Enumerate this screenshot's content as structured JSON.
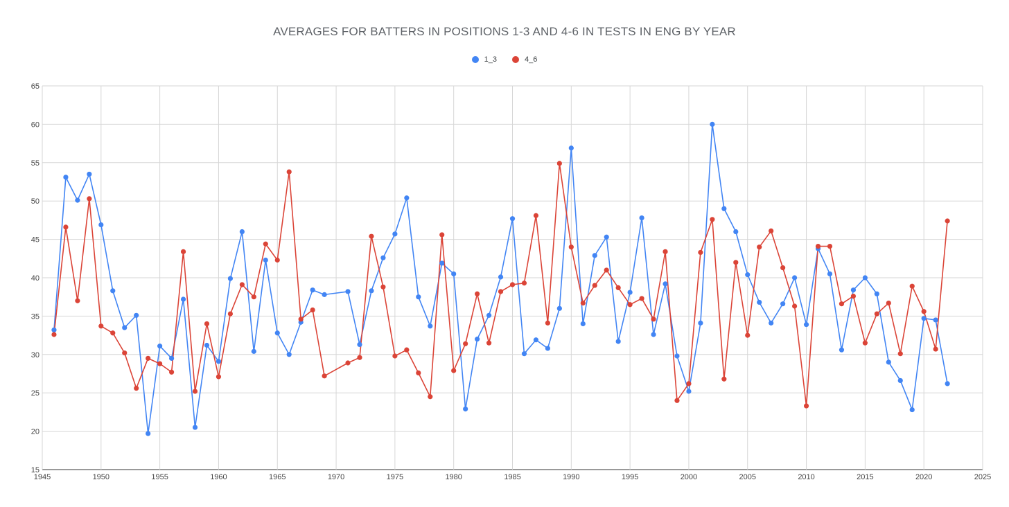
{
  "chart_data": {
    "type": "line",
    "title": "AVERAGES FOR BATTERS IN POSITIONS 1-3 AND 4-6 IN TESTS IN ENG BY YEAR",
    "xlabel": "",
    "ylabel": "",
    "xlim": [
      1945,
      2025
    ],
    "ylim": [
      15,
      65
    ],
    "x_ticks": [
      "1945",
      "1950",
      "1955",
      "1960",
      "1965",
      "1970",
      "1975",
      "1980",
      "1985",
      "1990",
      "1995",
      "2000",
      "2005",
      "2010",
      "2015",
      "2020",
      "2025"
    ],
    "y_ticks": [
      "15",
      "20",
      "25",
      "30",
      "35",
      "40",
      "45",
      "50",
      "55",
      "60",
      "65"
    ],
    "grid": true,
    "legend_position": "top",
    "series": [
      {
        "name": "1_3",
        "color": "#4285f4",
        "points": [
          [
            1946,
            33.2
          ],
          [
            1947,
            53.1
          ],
          [
            1948,
            50.1
          ],
          [
            1949,
            53.5
          ],
          [
            1950,
            46.9
          ],
          [
            1951,
            38.3
          ],
          [
            1952,
            33.5
          ],
          [
            1953,
            35.1
          ],
          [
            1954,
            19.7
          ],
          [
            1955,
            31.1
          ],
          [
            1956,
            29.5
          ],
          [
            1957,
            37.2
          ],
          [
            1958,
            20.5
          ],
          [
            1959,
            31.2
          ],
          [
            1960,
            29.1
          ],
          [
            1961,
            39.9
          ],
          [
            1962,
            46.0
          ],
          [
            1963,
            30.4
          ],
          [
            1964,
            42.3
          ],
          [
            1965,
            32.8
          ],
          [
            1966,
            30.0
          ],
          [
            1967,
            34.2
          ],
          [
            1968,
            38.4
          ],
          [
            1969,
            37.8
          ],
          [
            1971,
            38.2
          ],
          [
            1972,
            31.3
          ],
          [
            1973,
            38.3
          ],
          [
            1974,
            42.6
          ],
          [
            1975,
            45.7
          ],
          [
            1976,
            50.4
          ],
          [
            1977,
            37.5
          ],
          [
            1978,
            33.7
          ],
          [
            1979,
            41.9
          ],
          [
            1980,
            40.5
          ],
          [
            1981,
            22.9
          ],
          [
            1982,
            32.0
          ],
          [
            1983,
            35.1
          ],
          [
            1984,
            40.1
          ],
          [
            1985,
            47.7
          ],
          [
            1986,
            30.1
          ],
          [
            1987,
            31.9
          ],
          [
            1988,
            30.8
          ],
          [
            1989,
            36.0
          ],
          [
            1990,
            56.9
          ],
          [
            1991,
            34.0
          ],
          [
            1992,
            42.9
          ],
          [
            1993,
            45.3
          ],
          [
            1994,
            31.7
          ],
          [
            1995,
            38.1
          ],
          [
            1996,
            47.8
          ],
          [
            1997,
            32.6
          ],
          [
            1998,
            39.2
          ],
          [
            1999,
            29.8
          ],
          [
            2000,
            25.2
          ],
          [
            2001,
            34.1
          ],
          [
            2002,
            60.0
          ],
          [
            2003,
            49.0
          ],
          [
            2004,
            46.0
          ],
          [
            2005,
            40.4
          ],
          [
            2006,
            36.8
          ],
          [
            2007,
            34.1
          ],
          [
            2008,
            36.6
          ],
          [
            2009,
            40.0
          ],
          [
            2010,
            33.9
          ],
          [
            2011,
            43.8
          ],
          [
            2012,
            40.5
          ],
          [
            2013,
            30.6
          ],
          [
            2014,
            38.4
          ],
          [
            2015,
            40.0
          ],
          [
            2016,
            37.9
          ],
          [
            2017,
            29.0
          ],
          [
            2018,
            26.6
          ],
          [
            2019,
            22.8
          ],
          [
            2020,
            34.7
          ],
          [
            2021,
            34.5
          ],
          [
            2022,
            26.2
          ]
        ]
      },
      {
        "name": "4_6",
        "color": "#db4437",
        "points": [
          [
            1946,
            32.6
          ],
          [
            1947,
            46.6
          ],
          [
            1948,
            37.0
          ],
          [
            1949,
            50.3
          ],
          [
            1950,
            33.7
          ],
          [
            1951,
            32.8
          ],
          [
            1952,
            30.2
          ],
          [
            1953,
            25.6
          ],
          [
            1954,
            29.5
          ],
          [
            1955,
            28.8
          ],
          [
            1956,
            27.7
          ],
          [
            1957,
            43.4
          ],
          [
            1958,
            25.2
          ],
          [
            1959,
            34.0
          ],
          [
            1960,
            27.1
          ],
          [
            1961,
            35.3
          ],
          [
            1962,
            39.1
          ],
          [
            1963,
            37.5
          ],
          [
            1964,
            44.4
          ],
          [
            1965,
            42.3
          ],
          [
            1966,
            53.8
          ],
          [
            1967,
            34.6
          ],
          [
            1968,
            35.8
          ],
          [
            1969,
            27.2
          ],
          [
            1971,
            28.9
          ],
          [
            1972,
            29.6
          ],
          [
            1973,
            45.4
          ],
          [
            1974,
            38.8
          ],
          [
            1975,
            29.8
          ],
          [
            1976,
            30.6
          ],
          [
            1977,
            27.6
          ],
          [
            1978,
            24.5
          ],
          [
            1979,
            45.6
          ],
          [
            1980,
            27.9
          ],
          [
            1981,
            31.4
          ],
          [
            1982,
            37.9
          ],
          [
            1983,
            31.5
          ],
          [
            1984,
            38.2
          ],
          [
            1985,
            39.1
          ],
          [
            1986,
            39.3
          ],
          [
            1987,
            48.1
          ],
          [
            1988,
            34.1
          ],
          [
            1989,
            54.9
          ],
          [
            1990,
            44.0
          ],
          [
            1991,
            36.7
          ],
          [
            1992,
            39.0
          ],
          [
            1993,
            41.0
          ],
          [
            1994,
            38.7
          ],
          [
            1995,
            36.5
          ],
          [
            1996,
            37.3
          ],
          [
            1997,
            34.6
          ],
          [
            1998,
            43.4
          ],
          [
            1999,
            24.0
          ],
          [
            2000,
            26.2
          ],
          [
            2001,
            43.3
          ],
          [
            2002,
            47.6
          ],
          [
            2003,
            26.8
          ],
          [
            2004,
            42.0
          ],
          [
            2005,
            32.5
          ],
          [
            2006,
            44.0
          ],
          [
            2007,
            46.1
          ],
          [
            2008,
            41.3
          ],
          [
            2009,
            36.3
          ],
          [
            2010,
            23.3
          ],
          [
            2011,
            44.1
          ],
          [
            2012,
            44.1
          ],
          [
            2013,
            36.6
          ],
          [
            2014,
            37.6
          ],
          [
            2015,
            31.5
          ],
          [
            2016,
            35.3
          ],
          [
            2017,
            36.7
          ],
          [
            2018,
            30.1
          ],
          [
            2019,
            38.9
          ],
          [
            2020,
            35.6
          ],
          [
            2021,
            30.7
          ],
          [
            2022,
            47.4
          ]
        ]
      }
    ]
  }
}
